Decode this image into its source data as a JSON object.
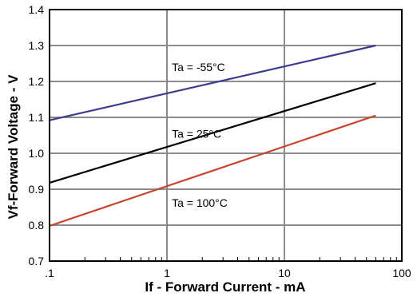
{
  "chart_data": {
    "type": "line",
    "title": "",
    "xlabel": "If - Forward Current - mA",
    "ylabel": "Vf-Forward Voltage - V",
    "x_scale": "log",
    "xlim": [
      0.1,
      100
    ],
    "ylim": [
      0.7,
      1.4
    ],
    "grid": true,
    "x_ticks": [
      {
        "value": 0.1,
        "label": ".1"
      },
      {
        "value": 1,
        "label": "1"
      },
      {
        "value": 10,
        "label": "10"
      },
      {
        "value": 100,
        "label": "100"
      }
    ],
    "y_ticks": [
      {
        "value": 0.7,
        "label": "0.7"
      },
      {
        "value": 0.8,
        "label": "0.8"
      },
      {
        "value": 0.9,
        "label": "0.9"
      },
      {
        "value": 1.0,
        "label": "1.0"
      },
      {
        "value": 1.1,
        "label": "1.1"
      },
      {
        "value": 1.2,
        "label": "1.2"
      },
      {
        "value": 1.3,
        "label": "1.3"
      },
      {
        "value": 1.4,
        "label": "1.4"
      }
    ],
    "series": [
      {
        "name": "Ta = -55°C",
        "color": "#3d3d8f",
        "x": [
          0.1,
          60
        ],
        "y": [
          1.092,
          1.3
        ]
      },
      {
        "name": "Ta = 25°C",
        "color": "#000000",
        "x": [
          0.1,
          60
        ],
        "y": [
          0.918,
          1.195
        ]
      },
      {
        "name": "Ta = 100°C",
        "color": "#c8462e",
        "x": [
          0.1,
          60
        ],
        "y": [
          0.798,
          1.105
        ]
      }
    ],
    "annotations": [
      {
        "text": "Ta = -55°C",
        "series": 0,
        "x": 1.1,
        "y": 1.24
      },
      {
        "text": "Ta = 25°C",
        "series": 1,
        "x": 1.1,
        "y": 1.055
      },
      {
        "text": "Ta = 100°C",
        "series": 2,
        "x": 1.1,
        "y": 0.862
      }
    ],
    "colors": {
      "grid": "#8c8c8c",
      "frame": "#000000"
    }
  }
}
